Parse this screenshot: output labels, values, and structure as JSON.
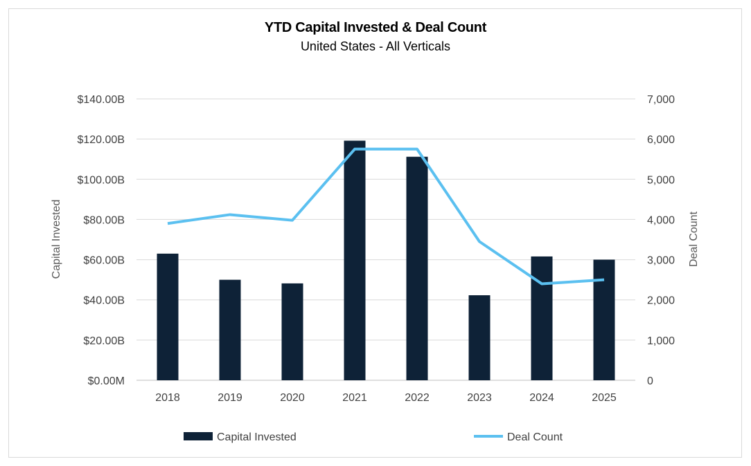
{
  "chart_data": {
    "type": "bar",
    "title": "YTD Capital Invested & Deal Count",
    "subtitle": "United States - All Verticals",
    "categories": [
      "2018",
      "2019",
      "2020",
      "2021",
      "2022",
      "2023",
      "2024",
      "2025"
    ],
    "series": [
      {
        "name": "Capital Invested",
        "type": "bar",
        "axis": "left",
        "unit": "USD billions",
        "color": "#0e2237",
        "values": [
          63.0,
          50.0,
          48.2,
          119.2,
          111.2,
          42.3,
          61.6,
          60.0
        ]
      },
      {
        "name": "Deal Count",
        "type": "line",
        "axis": "right",
        "color": "#5bc0f0",
        "values": [
          3900,
          4120,
          3980,
          5750,
          5750,
          3450,
          2400,
          2500
        ]
      }
    ],
    "y_left": {
      "label": "Capital Invested",
      "ylim": [
        0,
        140
      ],
      "ticks": [
        0,
        20,
        40,
        60,
        80,
        100,
        120,
        140
      ],
      "tick_labels": [
        "$0.00M",
        "$20.00B",
        "$40.00B",
        "$60.00B",
        "$80.00B",
        "$100.00B",
        "$120.00B",
        "$140.00B"
      ]
    },
    "y_right": {
      "label": "Deal Count",
      "ylim": [
        0,
        7000
      ],
      "ticks": [
        0,
        1000,
        2000,
        3000,
        4000,
        5000,
        6000,
        7000
      ],
      "tick_labels": [
        "0",
        "1,000",
        "2,000",
        "3,000",
        "4,000",
        "5,000",
        "6,000",
        "7,000"
      ]
    },
    "grid": true,
    "legend_position": "bottom"
  }
}
